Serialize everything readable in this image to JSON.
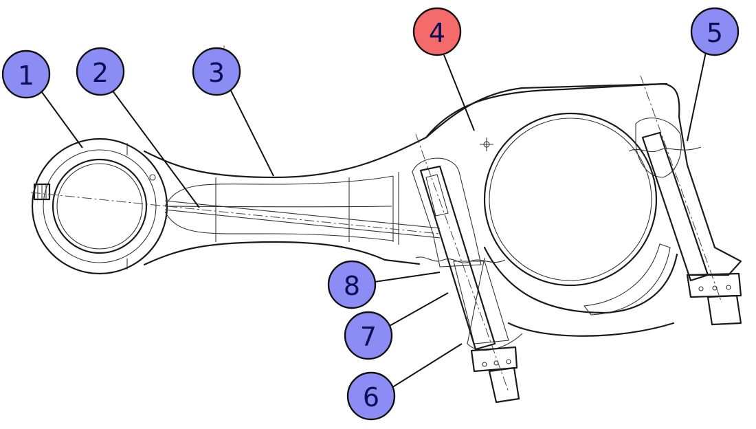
{
  "colors": {
    "callout_default": "#8c8cf5",
    "callout_highlight": "#f56a6a",
    "callout_text": "#0d0d55",
    "line": "#1a1a1a"
  },
  "callouts": [
    {
      "label": "1",
      "highlighted": false
    },
    {
      "label": "2",
      "highlighted": false
    },
    {
      "label": "3",
      "highlighted": false
    },
    {
      "label": "4",
      "highlighted": true
    },
    {
      "label": "5",
      "highlighted": false
    },
    {
      "label": "6",
      "highlighted": false
    },
    {
      "label": "7",
      "highlighted": false
    },
    {
      "label": "8",
      "highlighted": false
    }
  ]
}
